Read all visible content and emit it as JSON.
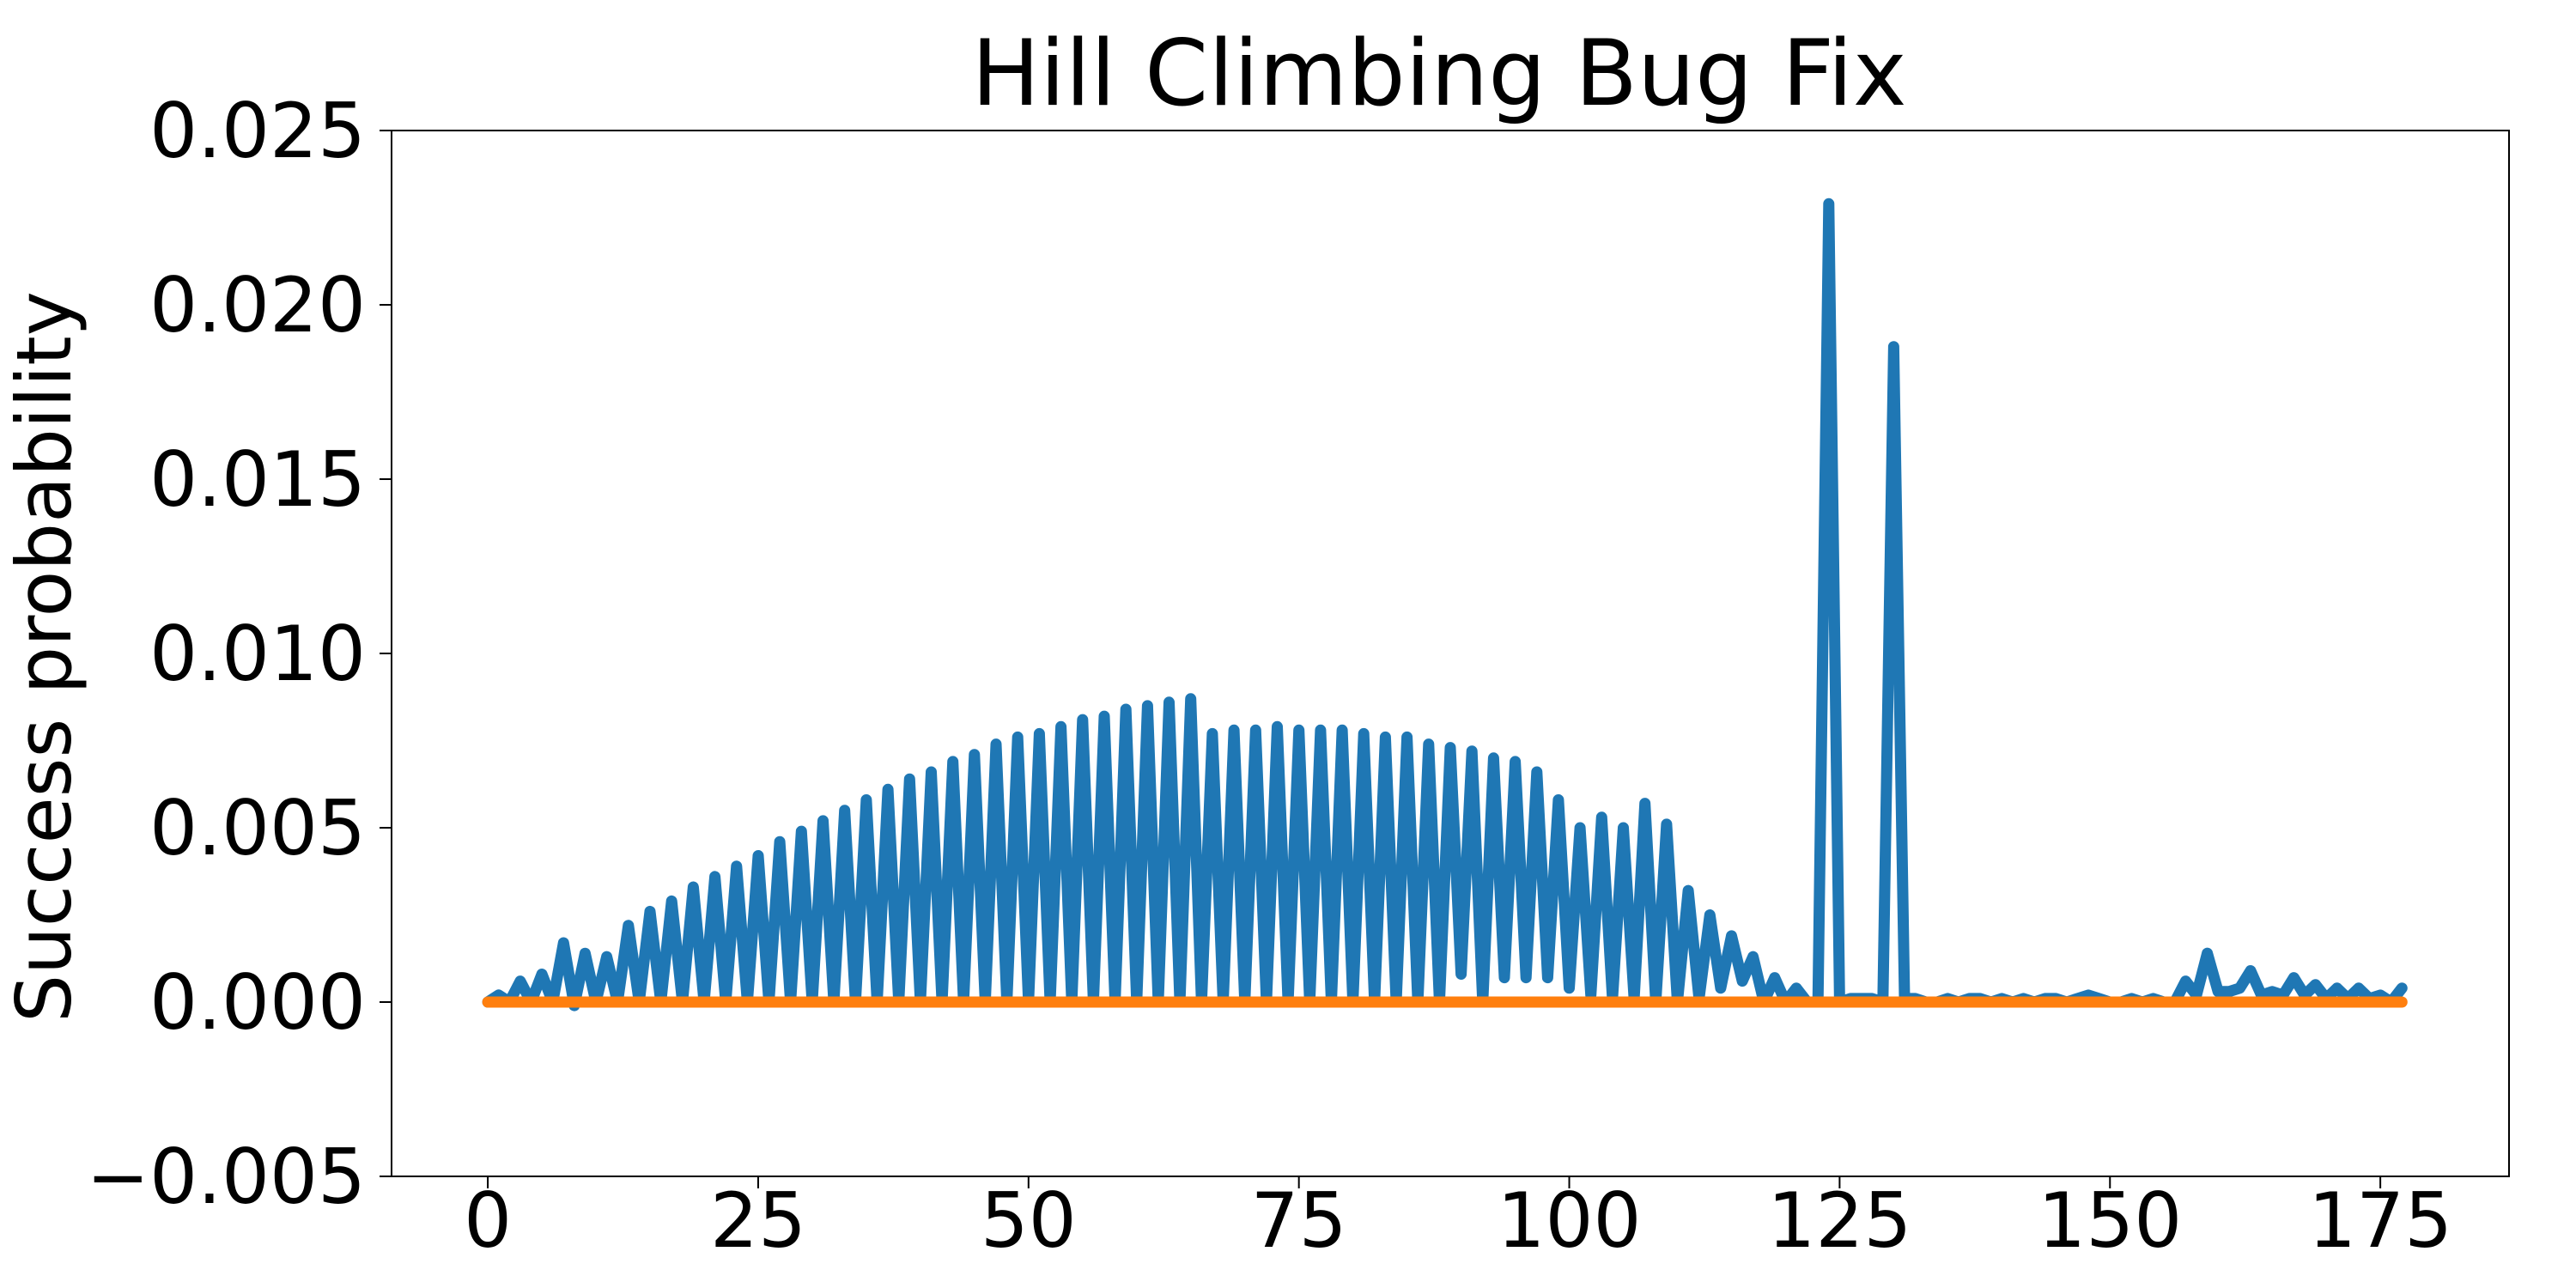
{
  "chart_data": {
    "type": "line",
    "title": "Hill Climbing Bug Fix",
    "xlabel": "",
    "ylabel": "Success probability",
    "xlim": [
      -8.9,
      186.9
    ],
    "ylim": [
      -0.005,
      0.025
    ],
    "x_ticks": [
      0,
      25,
      50,
      75,
      100,
      125,
      150,
      175
    ],
    "y_ticks": [
      -0.005,
      0.0,
      0.005,
      0.01,
      0.015,
      0.02,
      0.025
    ],
    "x_tick_labels": [
      "0",
      "25",
      "50",
      "75",
      "100",
      "125",
      "150",
      "175"
    ],
    "y_tick_labels": [
      "−0.005",
      "0.000",
      "0.005",
      "0.010",
      "0.015",
      "0.020",
      "0.025"
    ],
    "grid": false,
    "legend": null,
    "series": [
      {
        "color": "#1f77b4",
        "x": [
          0,
          1,
          2,
          3,
          4,
          5,
          6,
          7,
          8,
          9,
          10,
          11,
          12,
          13,
          14,
          15,
          16,
          17,
          18,
          19,
          20,
          21,
          22,
          23,
          24,
          25,
          26,
          27,
          28,
          29,
          30,
          31,
          32,
          33,
          34,
          35,
          36,
          37,
          38,
          39,
          40,
          41,
          42,
          43,
          44,
          45,
          46,
          47,
          48,
          49,
          50,
          51,
          52,
          53,
          54,
          55,
          56,
          57,
          58,
          59,
          60,
          61,
          62,
          63,
          64,
          65,
          66,
          67,
          68,
          69,
          70,
          71,
          72,
          73,
          74,
          75,
          76,
          77,
          78,
          79,
          80,
          81,
          82,
          83,
          84,
          85,
          86,
          87,
          88,
          89,
          90,
          91,
          92,
          93,
          94,
          95,
          96,
          97,
          98,
          99,
          100,
          101,
          102,
          103,
          104,
          105,
          106,
          107,
          108,
          109,
          110,
          111,
          112,
          113,
          114,
          115,
          116,
          117,
          118,
          119,
          120,
          121,
          122,
          123,
          124,
          125,
          126,
          127,
          128,
          129,
          130,
          131,
          132,
          133,
          134,
          135,
          136,
          137,
          138,
          139,
          140,
          141,
          142,
          143,
          144,
          145,
          146,
          147,
          148,
          149,
          150,
          151,
          152,
          153,
          154,
          155,
          156,
          157,
          158,
          159,
          160,
          161,
          162,
          163,
          164,
          165,
          166,
          167,
          168,
          169,
          170,
          171,
          172,
          173,
          174,
          175,
          176,
          177
        ],
        "y": [
          0.0,
          0.0002,
          0.0,
          0.0006,
          0.0,
          0.0008,
          0.0,
          0.0017,
          -0.0001,
          0.0014,
          0.0,
          0.0013,
          0.0,
          0.0022,
          0.0,
          0.0026,
          0.0,
          0.0029,
          0.0,
          0.0033,
          0.0,
          0.0036,
          0.0,
          0.0039,
          0.0,
          0.0042,
          0.0,
          0.0046,
          0.0,
          0.0049,
          0.0,
          0.0052,
          0.0,
          0.0055,
          0.0,
          0.0058,
          0.0,
          0.0061,
          0.0,
          0.0064,
          0.0,
          0.0066,
          0.0,
          0.0069,
          0.0,
          0.0071,
          0.0,
          0.0074,
          0.0,
          0.0076,
          0.0,
          0.0077,
          0.0,
          0.0079,
          0.0,
          0.0081,
          0.0,
          0.0082,
          0.0,
          0.0084,
          0.0,
          0.0085,
          0.0,
          0.0086,
          0.0,
          0.0087,
          0.0,
          0.0077,
          0.0,
          0.0078,
          0.0,
          0.0078,
          0.0,
          0.0079,
          0.0,
          0.0078,
          0.0,
          0.0078,
          0.0,
          0.0078,
          0.0,
          0.0077,
          0.0,
          0.0076,
          0.0,
          0.0076,
          0.0,
          0.0074,
          0.0,
          0.0073,
          0.0008,
          0.0072,
          0.0,
          0.007,
          0.0007,
          0.0069,
          0.0007,
          0.0066,
          0.0007,
          0.0058,
          0.0004,
          0.005,
          0.0002,
          0.0053,
          0.0001,
          0.005,
          0.0001,
          0.0057,
          0.0,
          0.0051,
          0.0,
          0.0032,
          0.0001,
          0.0025,
          0.0004,
          0.0019,
          0.0006,
          0.0013,
          0.0,
          0.0007,
          0.0,
          0.0004,
          0.0,
          0.0,
          0.0229,
          0.0,
          0.0001,
          0.0001,
          0.0001,
          0.0,
          0.0188,
          0.0001,
          0.0001,
          0.0,
          0.0,
          0.0001,
          0.0,
          0.0001,
          0.0001,
          0.0,
          0.0001,
          0.0,
          0.0001,
          0.0,
          0.0001,
          0.0001,
          0.0,
          0.0001,
          0.0002,
          0.0001,
          0.0,
          0.0,
          0.0001,
          0.0,
          0.0001,
          0.0,
          0.0,
          0.0006,
          0.0002,
          0.0014,
          0.0003,
          0.0003,
          0.0004,
          0.0009,
          0.0002,
          0.0003,
          0.0002,
          0.0007,
          0.0002,
          0.0005,
          0.0001,
          0.0004,
          0.0001,
          0.0004,
          0.0001,
          0.0002,
          0.0,
          0.0004
        ]
      },
      {
        "color": "#ff7f0e",
        "x": [
          0,
          177
        ],
        "y": [
          0.0,
          0.0
        ]
      }
    ]
  }
}
